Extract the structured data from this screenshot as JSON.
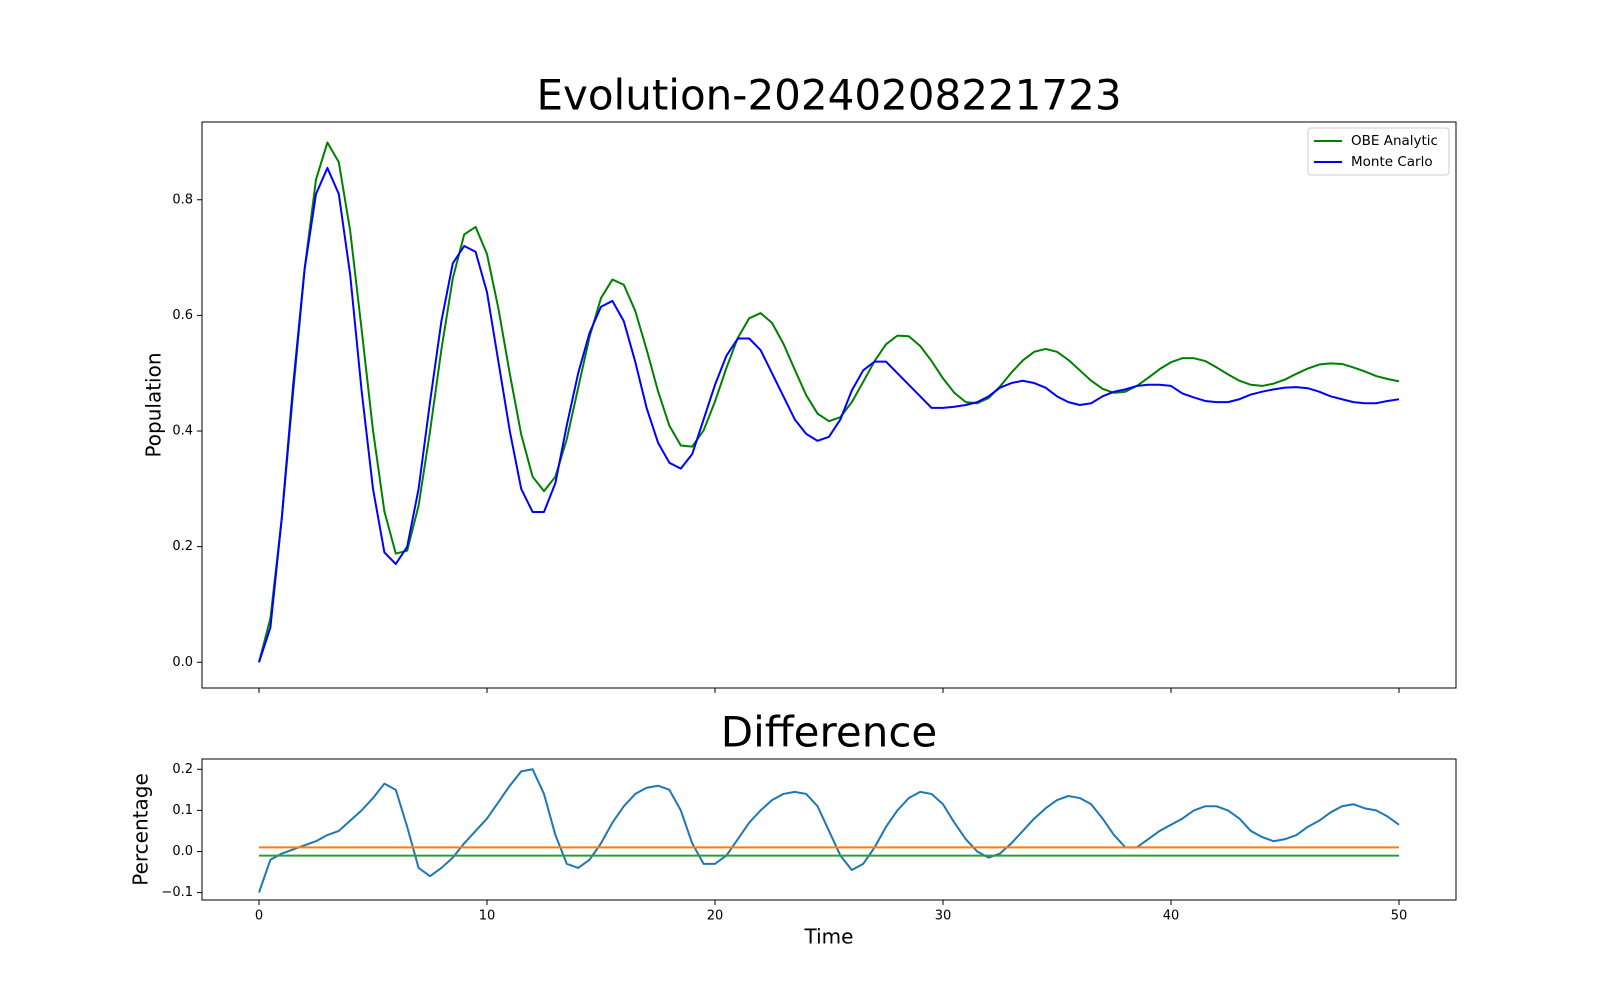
{
  "chart_data": [
    {
      "type": "line",
      "title": "Evolution-20240208221723",
      "ylabel": "Population",
      "x": [
        0,
        0.5,
        1,
        1.5,
        2,
        2.5,
        3,
        3.5,
        4,
        4.5,
        5,
        5.5,
        6,
        6.5,
        7,
        7.5,
        8,
        8.5,
        9,
        9.5,
        10,
        10.5,
        11,
        11.5,
        12,
        12.5,
        13,
        13.5,
        14,
        14.5,
        15,
        15.5,
        16,
        16.5,
        17,
        17.5,
        18,
        18.5,
        19,
        19.5,
        20,
        20.5,
        21,
        21.5,
        22,
        22.5,
        23,
        23.5,
        24,
        24.5,
        25,
        25.5,
        26,
        26.5,
        27,
        27.5,
        28,
        28.5,
        29,
        29.5,
        30,
        30.5,
        31,
        31.5,
        32,
        32.5,
        33,
        33.5,
        34,
        34.5,
        35,
        35.5,
        36,
        36.5,
        37,
        37.5,
        38,
        38.5,
        39,
        39.5,
        40,
        40.5,
        41,
        41.5,
        42,
        42.5,
        43,
        43.5,
        44,
        44.5,
        45,
        45.5,
        46,
        46.5,
        47,
        47.5,
        48,
        48.5,
        49,
        49.5,
        50
      ],
      "series": [
        {
          "name": "OBE Analytic",
          "color": "#008000",
          "values": [
            0,
            0.076,
            0.249,
            0.468,
            0.68,
            0.835,
            0.899,
            0.865,
            0.746,
            0.576,
            0.401,
            0.261,
            0.188,
            0.193,
            0.271,
            0.399,
            0.541,
            0.664,
            0.74,
            0.753,
            0.706,
            0.612,
            0.499,
            0.394,
            0.321,
            0.296,
            0.321,
            0.386,
            0.475,
            0.563,
            0.63,
            0.662,
            0.653,
            0.608,
            0.541,
            0.469,
            0.409,
            0.375,
            0.373,
            0.401,
            0.451,
            0.509,
            0.561,
            0.595,
            0.604,
            0.587,
            0.551,
            0.506,
            0.462,
            0.43,
            0.417,
            0.424,
            0.45,
            0.485,
            0.521,
            0.55,
            0.565,
            0.564,
            0.547,
            0.521,
            0.491,
            0.466,
            0.45,
            0.448,
            0.457,
            0.477,
            0.501,
            0.522,
            0.537,
            0.542,
            0.537,
            0.523,
            0.505,
            0.487,
            0.473,
            0.466,
            0.468,
            0.478,
            0.492,
            0.507,
            0.519,
            0.526,
            0.526,
            0.521,
            0.51,
            0.498,
            0.487,
            0.48,
            0.478,
            0.482,
            0.489,
            0.499,
            0.508,
            0.515,
            0.517,
            0.516,
            0.51,
            0.503,
            0.495,
            0.49,
            0.486
          ]
        },
        {
          "name": "Monte Carlo",
          "color": "#0000ff",
          "values": [
            0,
            0.06,
            0.25,
            0.48,
            0.68,
            0.81,
            0.855,
            0.81,
            0.67,
            0.47,
            0.3,
            0.19,
            0.17,
            0.2,
            0.3,
            0.45,
            0.59,
            0.69,
            0.72,
            0.71,
            0.64,
            0.52,
            0.4,
            0.3,
            0.26,
            0.26,
            0.31,
            0.41,
            0.5,
            0.57,
            0.615,
            0.625,
            0.59,
            0.52,
            0.44,
            0.38,
            0.345,
            0.335,
            0.36,
            0.42,
            0.48,
            0.53,
            0.56,
            0.56,
            0.54,
            0.5,
            0.46,
            0.42,
            0.395,
            0.383,
            0.39,
            0.42,
            0.47,
            0.505,
            0.52,
            0.52,
            0.5,
            0.48,
            0.46,
            0.44,
            0.44,
            0.442,
            0.445,
            0.45,
            0.46,
            0.475,
            0.483,
            0.487,
            0.483,
            0.475,
            0.46,
            0.45,
            0.445,
            0.448,
            0.46,
            0.468,
            0.472,
            0.478,
            0.48,
            0.48,
            0.478,
            0.465,
            0.458,
            0.452,
            0.45,
            0.45,
            0.455,
            0.463,
            0.468,
            0.472,
            0.475,
            0.476,
            0.474,
            0.468,
            0.46,
            0.455,
            0.45,
            0.448,
            0.448,
            0.452,
            0.455
          ]
        }
      ],
      "xlim": [
        -2.5,
        52.5
      ],
      "xticks": [
        0,
        10,
        20,
        30,
        40,
        50
      ],
      "ylim": [
        -0.0445,
        0.9345
      ],
      "yticks": [
        {
          "value": 0,
          "label": "0.0"
        },
        0.2,
        0.4,
        0.6,
        0.8
      ],
      "legend": "upper right"
    },
    {
      "type": "line",
      "title": "Difference",
      "xlabel": "Time",
      "ylabel": "Percentage",
      "x": [
        0,
        0.5,
        1,
        1.5,
        2,
        2.5,
        3,
        3.5,
        4,
        4.5,
        5,
        5.5,
        6,
        6.5,
        7,
        7.5,
        8,
        8.5,
        9,
        9.5,
        10,
        10.5,
        11,
        11.5,
        12,
        12.5,
        13,
        13.5,
        14,
        14.5,
        15,
        15.5,
        16,
        16.5,
        17,
        17.5,
        18,
        18.5,
        19,
        19.5,
        20,
        20.5,
        21,
        21.5,
        22,
        22.5,
        23,
        23.5,
        24,
        24.5,
        25,
        25.5,
        26,
        26.5,
        27,
        27.5,
        28,
        28.5,
        29,
        29.5,
        30,
        30.5,
        31,
        31.5,
        32,
        32.5,
        33,
        33.5,
        34,
        34.5,
        35,
        35.5,
        36,
        36.5,
        37,
        37.5,
        38,
        38.5,
        39,
        39.5,
        40,
        40.5,
        41,
        41.5,
        42,
        42.5,
        43,
        43.5,
        44,
        44.5,
        45,
        45.5,
        46,
        46.5,
        47,
        47.5,
        48,
        48.5,
        49,
        49.5,
        50
      ],
      "series": [
        {
          "color": "#1f77b4",
          "values": [
            -0.1,
            -0.02,
            -0.005,
            0.005,
            0.015,
            0.025,
            0.04,
            0.05,
            0.075,
            0.1,
            0.13,
            0.165,
            0.15,
            0.06,
            -0.04,
            -0.06,
            -0.04,
            -0.015,
            0.02,
            0.05,
            0.08,
            0.12,
            0.16,
            0.195,
            0.2,
            0.14,
            0.04,
            -0.03,
            -0.04,
            -0.02,
            0.02,
            0.07,
            0.11,
            0.14,
            0.155,
            0.16,
            0.15,
            0.1,
            0.02,
            -0.03,
            -0.03,
            -0.01,
            0.03,
            0.07,
            0.1,
            0.125,
            0.14,
            0.145,
            0.14,
            0.11,
            0.05,
            -0.01,
            -0.045,
            -0.03,
            0.01,
            0.06,
            0.1,
            0.13,
            0.145,
            0.14,
            0.115,
            0.07,
            0.03,
            0,
            -0.015,
            -0.005,
            0.02,
            0.05,
            0.08,
            0.105,
            0.125,
            0.135,
            0.13,
            0.115,
            0.08,
            0.04,
            0.01,
            0.01,
            0.03,
            0.05,
            0.065,
            0.08,
            0.1,
            0.11,
            0.11,
            0.1,
            0.08,
            0.05,
            0.035,
            0.025,
            0.03,
            0.04,
            0.06,
            0.075,
            0.095,
            0.11,
            0.115,
            0.105,
            0.1,
            0.085,
            0.065
          ]
        },
        {
          "color": "#ff7f0e",
          "x": [
            0,
            50
          ],
          "values": [
            0.01,
            0.01
          ]
        },
        {
          "color": "#2ca02c",
          "x": [
            0,
            50
          ],
          "values": [
            -0.01,
            -0.01
          ]
        }
      ],
      "xlim": [
        -2.5,
        52.5
      ],
      "xticks": [
        0,
        10,
        20,
        30,
        40,
        50
      ],
      "ylim": [
        -0.118,
        0.225
      ],
      "yticks": [
        {
          "value": -0.1,
          "label": "−0.1"
        },
        {
          "value": 0,
          "label": "0.0"
        },
        0.1,
        0.2
      ]
    }
  ]
}
